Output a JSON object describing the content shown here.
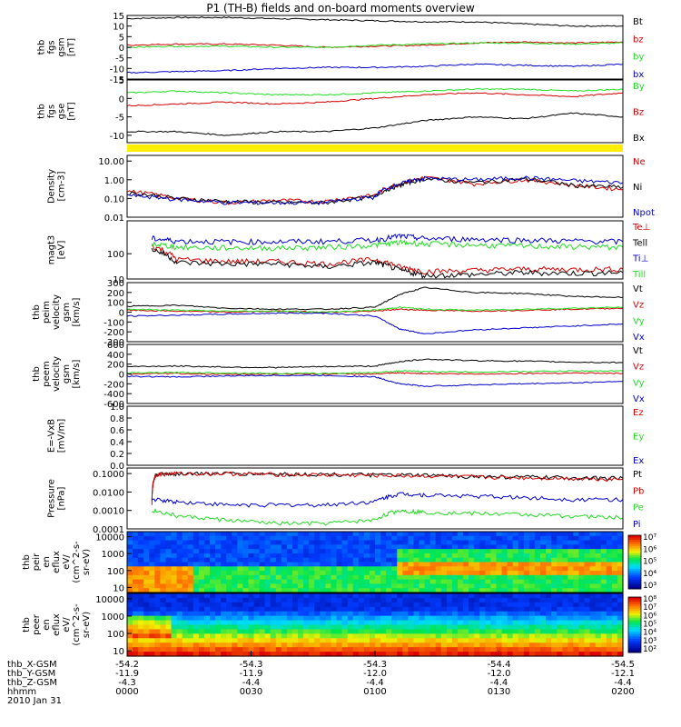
{
  "title": "P1  (TH-B) fields and on-board moments overview",
  "colors": {
    "black": "#000000",
    "red": "#d40000",
    "green": "#22dd22",
    "blue": "#0000cc",
    "yellow": "#ffee00"
  },
  "chart_data": [
    {
      "type": "line",
      "ylabel": [
        "thb",
        "fgs",
        "gsm",
        "[nT]"
      ],
      "ylim": [
        -15,
        15
      ],
      "ticks": [
        15,
        10,
        5,
        0,
        -5,
        -10,
        -15
      ],
      "series": [
        {
          "name": "Bt",
          "color": "black",
          "x": [
            0,
            12,
            24,
            36,
            48,
            60,
            72,
            84,
            96,
            108,
            120
          ],
          "values": [
            13.5,
            14,
            14,
            13.5,
            13,
            12.5,
            12,
            12,
            11,
            10,
            10
          ]
        },
        {
          "name": "bz",
          "color": "red",
          "x": [
            0,
            12,
            24,
            36,
            48,
            60,
            72,
            84,
            96,
            108,
            120
          ],
          "values": [
            1,
            1.5,
            1.5,
            1,
            0,
            0.5,
            1,
            2,
            2.5,
            2,
            2.5
          ]
        },
        {
          "name": "by",
          "color": "green",
          "x": [
            0,
            12,
            24,
            36,
            48,
            60,
            72,
            84,
            96,
            108,
            120
          ],
          "values": [
            0,
            0.5,
            0.5,
            0,
            0,
            1,
            1.5,
            2,
            2,
            1.5,
            2
          ]
        },
        {
          "name": "bx",
          "color": "blue",
          "x": [
            0,
            12,
            24,
            36,
            48,
            60,
            72,
            84,
            96,
            108,
            120
          ],
          "values": [
            -12,
            -11.5,
            -11,
            -10,
            -9.5,
            -9.5,
            -9,
            -8,
            -8.5,
            -9,
            -8
          ]
        }
      ]
    },
    {
      "type": "line",
      "ylabel": [
        "thb",
        "fgs",
        "gse",
        "[nT]"
      ],
      "ylim": [
        -12,
        5
      ],
      "ticks": [
        5,
        0,
        -5,
        -10
      ],
      "series": [
        {
          "name": "By",
          "color": "green",
          "x": [
            0,
            12,
            24,
            36,
            48,
            60,
            72,
            84,
            96,
            108,
            120
          ],
          "values": [
            1.5,
            2,
            1.5,
            1,
            1,
            1.5,
            2,
            2.5,
            2.5,
            2,
            2.5
          ]
        },
        {
          "name": "Bz",
          "color": "red",
          "x": [
            0,
            12,
            24,
            36,
            48,
            60,
            72,
            84,
            96,
            108,
            120
          ],
          "values": [
            -2,
            -1.5,
            -1,
            -1.5,
            -1,
            0,
            1,
            1.5,
            1,
            0.5,
            1.5
          ]
        },
        {
          "name": "Bx",
          "color": "black",
          "x": [
            0,
            12,
            24,
            36,
            48,
            60,
            72,
            84,
            96,
            108,
            120
          ],
          "values": [
            -9,
            -9,
            -10,
            -9,
            -9,
            -8,
            -6,
            -5,
            -5.5,
            -4,
            -5
          ]
        }
      ]
    },
    {
      "type": "line",
      "scale": "log",
      "ylabel": [
        "Density",
        "[cm-3]"
      ],
      "ylim": [
        0.01,
        20
      ],
      "ticks": [
        "10.00",
        "1.00",
        "0.10",
        "0.01"
      ],
      "series": [
        {
          "name": "Ne",
          "color": "red",
          "x": [
            0,
            12,
            24,
            36,
            48,
            60,
            66,
            72,
            84,
            96,
            108,
            120
          ],
          "values": [
            0.25,
            0.1,
            0.06,
            0.08,
            0.07,
            0.15,
            0.6,
            1.3,
            0.6,
            1.0,
            0.5,
            0.3
          ]
        },
        {
          "name": "Ni",
          "color": "black",
          "x": [
            0,
            12,
            24,
            36,
            48,
            60,
            66,
            72,
            84,
            96,
            108,
            120
          ],
          "values": [
            0.2,
            0.1,
            0.07,
            0.06,
            0.06,
            0.12,
            0.5,
            1.1,
            0.7,
            1.1,
            0.5,
            0.4
          ]
        },
        {
          "name": "Npot",
          "color": "blue",
          "x": [
            0,
            12,
            24,
            36,
            48,
            60,
            66,
            72,
            84,
            96,
            108,
            120
          ],
          "values": [
            0.15,
            0.09,
            0.06,
            0.06,
            0.06,
            0.12,
            0.6,
            1.2,
            1.0,
            1.3,
            0.9,
            0.7
          ]
        }
      ]
    },
    {
      "type": "line",
      "scale": "log",
      "ylabel": [
        "magt3",
        "[eV]"
      ],
      "ylim": [
        10,
        2000
      ],
      "ticks": [
        "100",
        "10"
      ],
      "series": [
        {
          "name": "Te⊥",
          "color": "red",
          "x": [
            6,
            12,
            24,
            36,
            48,
            60,
            66,
            72,
            84,
            96,
            108,
            120
          ],
          "values": [
            200,
            60,
            50,
            50,
            40,
            60,
            30,
            20,
            22,
            25,
            24,
            25
          ]
        },
        {
          "name": "Tell",
          "color": "black",
          "x": [
            6,
            12,
            24,
            36,
            48,
            60,
            66,
            72,
            84,
            96,
            108,
            120
          ],
          "values": [
            150,
            45,
            40,
            40,
            30,
            45,
            22,
            14,
            15,
            18,
            17,
            18
          ]
        },
        {
          "name": "Ti⊥",
          "color": "blue",
          "x": [
            6,
            12,
            24,
            36,
            48,
            60,
            66,
            72,
            84,
            96,
            108,
            120
          ],
          "values": [
            400,
            320,
            300,
            300,
            310,
            350,
            500,
            400,
            380,
            350,
            320,
            300
          ]
        },
        {
          "name": "Till",
          "color": "green",
          "x": [
            6,
            12,
            24,
            36,
            48,
            60,
            66,
            72,
            84,
            96,
            108,
            120
          ],
          "values": [
            250,
            180,
            170,
            170,
            180,
            220,
            280,
            250,
            220,
            200,
            190,
            180
          ]
        }
      ]
    },
    {
      "type": "line",
      "ylabel": [
        "thb",
        "peim",
        "velocity",
        "gsm",
        "[km/s]"
      ],
      "ylim": [
        -300,
        300
      ],
      "ticks": [
        300,
        200,
        100,
        0,
        -100,
        -200,
        -300
      ],
      "series": [
        {
          "name": "Vt",
          "color": "black",
          "x": [
            0,
            12,
            24,
            36,
            48,
            60,
            66,
            72,
            84,
            96,
            108,
            120
          ],
          "values": [
            60,
            70,
            40,
            30,
            30,
            50,
            180,
            250,
            200,
            190,
            160,
            150
          ]
        },
        {
          "name": "Vz",
          "color": "red",
          "x": [
            0,
            12,
            24,
            36,
            48,
            60,
            66,
            72,
            84,
            96,
            108,
            120
          ],
          "values": [
            20,
            10,
            0,
            10,
            0,
            10,
            30,
            20,
            10,
            20,
            30,
            40
          ]
        },
        {
          "name": "Vy",
          "color": "green",
          "x": [
            0,
            12,
            24,
            36,
            48,
            60,
            66,
            72,
            84,
            96,
            108,
            120
          ],
          "values": [
            30,
            20,
            10,
            10,
            0,
            20,
            50,
            30,
            20,
            30,
            40,
            50
          ]
        },
        {
          "name": "Vx",
          "color": "blue",
          "x": [
            0,
            12,
            24,
            36,
            48,
            60,
            66,
            72,
            84,
            96,
            108,
            120
          ],
          "values": [
            -40,
            -30,
            -20,
            -10,
            -10,
            -40,
            -170,
            -220,
            -180,
            -160,
            -140,
            -120
          ]
        }
      ]
    },
    {
      "type": "line",
      "ylabel": [
        "thb",
        "peem",
        "velocity",
        "gsm",
        "[km/s]"
      ],
      "ylim": [
        -600,
        600
      ],
      "ticks": [
        600,
        400,
        200,
        0,
        -200,
        -400,
        -600
      ],
      "series": [
        {
          "name": "Vt",
          "color": "black",
          "x": [
            0,
            12,
            24,
            36,
            48,
            60,
            66,
            72,
            84,
            96,
            108,
            120
          ],
          "values": [
            150,
            160,
            140,
            130,
            150,
            160,
            250,
            300,
            270,
            260,
            240,
            230
          ]
        },
        {
          "name": "Vz",
          "color": "red",
          "x": [
            0,
            12,
            24,
            36,
            48,
            60,
            66,
            72,
            84,
            96,
            108,
            120
          ],
          "values": [
            0,
            10,
            -10,
            0,
            0,
            0,
            20,
            10,
            0,
            10,
            20,
            10
          ]
        },
        {
          "name": "Vy",
          "color": "green",
          "x": [
            0,
            12,
            24,
            36,
            48,
            60,
            66,
            72,
            84,
            96,
            108,
            120
          ],
          "values": [
            20,
            30,
            20,
            10,
            10,
            30,
            60,
            50,
            40,
            50,
            60,
            60
          ]
        },
        {
          "name": "Vx",
          "color": "blue",
          "x": [
            0,
            12,
            24,
            36,
            48,
            60,
            66,
            72,
            84,
            96,
            108,
            120
          ],
          "values": [
            -50,
            -60,
            -40,
            -30,
            -30,
            -60,
            -200,
            -250,
            -220,
            -200,
            -180,
            -150
          ]
        }
      ]
    },
    {
      "type": "line",
      "ylabel": [
        "E=-VxB",
        "[mV/m]"
      ],
      "ylim": [
        0,
        1
      ],
      "ticks": [
        "1.0",
        "0.8",
        "0.6",
        "0.4",
        "0.2",
        "0.0"
      ],
      "series": [
        {
          "name": "Ez",
          "color": "red",
          "x": [],
          "values": []
        },
        {
          "name": "Ey",
          "color": "green",
          "x": [],
          "values": []
        },
        {
          "name": "Ex",
          "color": "blue",
          "x": [],
          "values": []
        }
      ]
    },
    {
      "type": "line",
      "scale": "log",
      "ylabel": [
        "Pressure",
        "[nPa]"
      ],
      "ylim": [
        0.0001,
        0.2
      ],
      "ticks": [
        "0.1000",
        "0.0100",
        "0.0010",
        "0.0001"
      ],
      "series": [
        {
          "name": "Pt",
          "color": "black",
          "x": [
            6,
            7,
            12,
            24,
            36,
            48,
            60,
            72,
            84,
            96,
            108,
            120
          ],
          "values": [
            0.003,
            0.09,
            0.1,
            0.1,
            0.095,
            0.09,
            0.085,
            0.08,
            0.07,
            0.065,
            0.06,
            0.055
          ]
        },
        {
          "name": "Pb",
          "color": "red",
          "x": [
            6,
            7,
            12,
            24,
            36,
            48,
            60,
            72,
            84,
            96,
            108,
            120
          ],
          "values": [
            0.002,
            0.09,
            0.1,
            0.1,
            0.09,
            0.085,
            0.08,
            0.075,
            0.065,
            0.06,
            0.055,
            0.05
          ]
        },
        {
          "name": "Pe",
          "color": "green",
          "x": [
            6,
            12,
            24,
            36,
            48,
            60,
            66,
            72,
            84,
            96,
            108,
            120
          ],
          "values": [
            0.001,
            0.0005,
            0.0003,
            0.0002,
            0.0002,
            0.0003,
            0.001,
            0.0008,
            0.0007,
            0.0006,
            0.0005,
            0.0004
          ]
        },
        {
          "name": "Pi",
          "color": "blue",
          "x": [
            6,
            12,
            24,
            36,
            48,
            60,
            66,
            72,
            84,
            96,
            108,
            120
          ],
          "values": [
            0.004,
            0.003,
            0.002,
            0.002,
            0.002,
            0.003,
            0.008,
            0.007,
            0.006,
            0.005,
            0.004,
            0.004
          ]
        }
      ]
    },
    {
      "type": "heatmap",
      "ylabel": [
        "thb",
        "peir",
        "en",
        "eflux",
        "eV/",
        "(cm^2-s-",
        "sr-eV)"
      ],
      "ylim": [
        5,
        20000
      ],
      "ticks": [
        "10000",
        "1000",
        "100",
        "10"
      ],
      "colorbar": {
        "min_exp": 3,
        "max_exp": 7,
        "labels": [
          "10⁷",
          "10⁶",
          "10⁵",
          "10⁴",
          "10³"
        ]
      }
    },
    {
      "type": "heatmap",
      "ylabel": [
        "thb",
        "peer",
        "en",
        "eflux",
        "eV/",
        "(cm^2-s-",
        "sr-eV)"
      ],
      "ylim": [
        5,
        20000
      ],
      "ticks": [
        "10000",
        "1000",
        "100",
        "10"
      ],
      "colorbar": {
        "min_exp": 2,
        "max_exp": 8,
        "labels": [
          "10⁸",
          "10⁷",
          "10⁶",
          "10⁵",
          "10⁴",
          "10³",
          "10²"
        ]
      }
    }
  ],
  "x_axis": {
    "row_labels": [
      "thb_X-GSM",
      "thb_Y-GSM",
      "thb_Z-GSM",
      "hhmm",
      "2010 Jan 31"
    ],
    "ticks": [
      {
        "x": 0,
        "values": [
          "-54.2",
          "-11.9",
          "-4.3",
          "0000"
        ]
      },
      {
        "x": 30,
        "values": [
          "-54.3",
          "-11.9",
          "-4.4",
          "0030"
        ]
      },
      {
        "x": 60,
        "values": [
          "-54.3",
          "-12.0",
          "-4.4",
          "0100"
        ]
      },
      {
        "x": 90,
        "values": [
          "-54.4",
          "-12.0",
          "-4.4",
          "0130"
        ]
      },
      {
        "x": 120,
        "values": [
          "-54.5",
          "-12.1",
          "-4.4",
          "0200"
        ]
      }
    ]
  }
}
